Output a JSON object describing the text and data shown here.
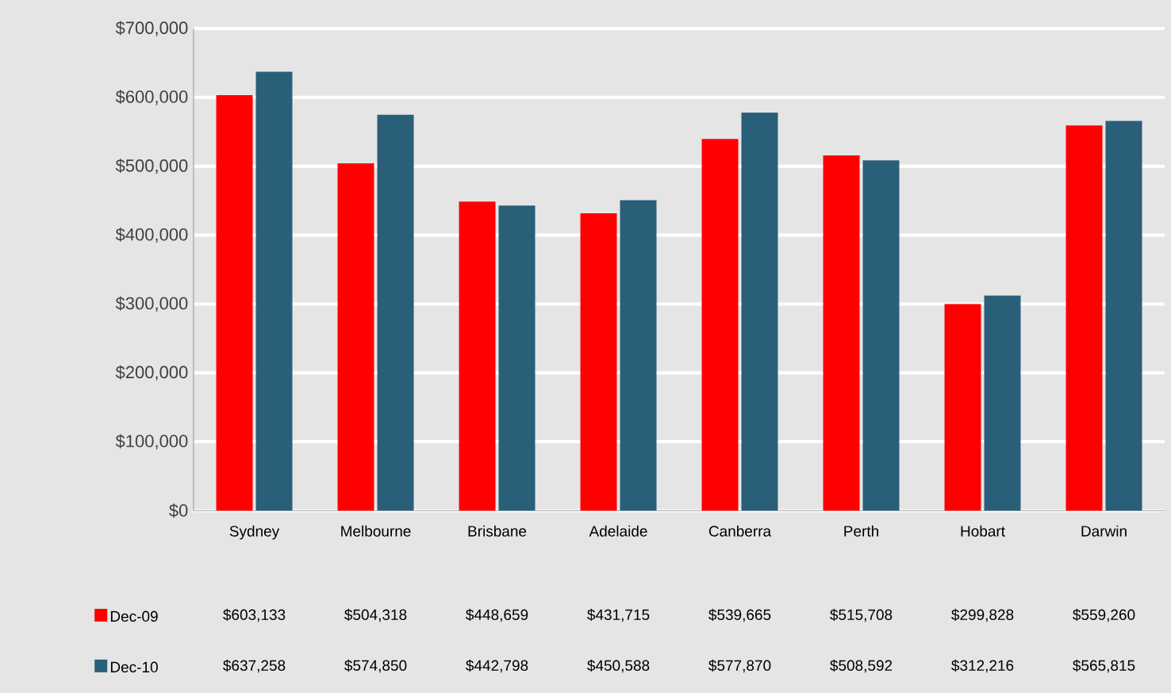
{
  "chart_data": {
    "type": "bar",
    "categories": [
      "Sydney",
      "Melbourne",
      "Brisbane",
      "Adelaide",
      "Canberra",
      "Perth",
      "Hobart",
      "Darwin"
    ],
    "series": [
      {
        "name": "Dec-09",
        "color": "#ff0000",
        "values": [
          603133,
          504318,
          448659,
          431715,
          539665,
          515708,
          299828,
          559260
        ],
        "value_labels": [
          "$603,133",
          "$504,318",
          "$448,659",
          "$431,715",
          "$539,665",
          "$515,708",
          "$299,828",
          "$559,260"
        ]
      },
      {
        "name": "Dec-10",
        "color": "#2a5f7a",
        "values": [
          637258,
          574850,
          442798,
          450588,
          577870,
          508592,
          312216,
          565815
        ],
        "value_labels": [
          "$637,258",
          "$574,850",
          "$442,798",
          "$450,588",
          "$577,870",
          "$508,592",
          "$312,216",
          "$565,815"
        ]
      }
    ],
    "ylim": [
      0,
      700000
    ],
    "yticks": [
      {
        "value": 0,
        "label": "$0"
      },
      {
        "value": 100000,
        "label": "$100,000"
      },
      {
        "value": 200000,
        "label": "$200,000"
      },
      {
        "value": 300000,
        "label": "$300,000"
      },
      {
        "value": 400000,
        "label": "$400,000"
      },
      {
        "value": 500000,
        "label": "$500,000"
      },
      {
        "value": 600000,
        "label": "$600,000"
      },
      {
        "value": 700000,
        "label": "$700,000"
      }
    ],
    "grid": "y",
    "legend": "bottom"
  }
}
